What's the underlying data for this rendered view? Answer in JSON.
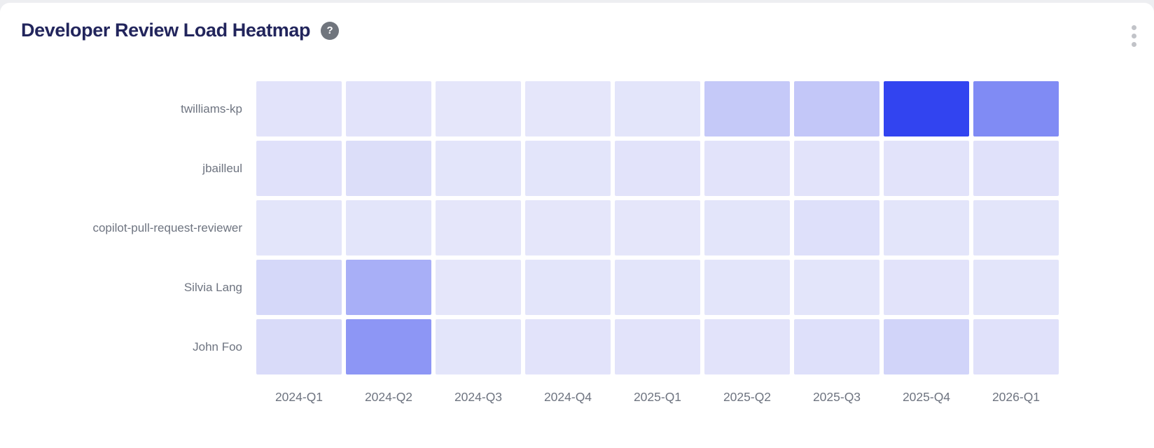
{
  "header": {
    "title": "Developer Review Load Heatmap",
    "help_label": "?"
  },
  "colors": {
    "page_bg": "#edeef1",
    "card_bg": "#ffffff",
    "title_text": "#22255c",
    "axis_text": "#6e7480",
    "help_badge_bg": "#70757d",
    "menu_dots": "#c1c3c8",
    "heat_min": "#e7e8fa",
    "heat_max": "#3244f0"
  },
  "chart_data": {
    "type": "heatmap",
    "title": "Developer Review Load Heatmap",
    "x_categories": [
      "2024-Q1",
      "2024-Q2",
      "2024-Q3",
      "2024-Q4",
      "2025-Q1",
      "2025-Q2",
      "2025-Q3",
      "2025-Q4",
      "2026-Q1"
    ],
    "y_categories": [
      "twilliams-kp",
      "jbailleul",
      "copilot-pull-request-reviewer",
      "Silvia Lang",
      "John Foo"
    ],
    "value_range": [
      0,
      100
    ],
    "legend": "none",
    "color_scale": {
      "min_color": "#e7e8fa",
      "max_color": "#3244f0"
    },
    "series": [
      {
        "name": "twilliams-kp",
        "values": [
          3,
          3,
          1,
          1,
          2,
          19,
          20,
          100,
          57
        ]
      },
      {
        "name": "jbailleul",
        "values": [
          4,
          6,
          2,
          2,
          3,
          3,
          3,
          3,
          4
        ]
      },
      {
        "name": "copilot-pull-request-reviewer",
        "values": [
          2,
          2,
          1,
          1,
          1,
          2,
          5,
          2,
          2
        ]
      },
      {
        "name": "Silvia Lang",
        "values": [
          10,
          35,
          1,
          2,
          2,
          2,
          2,
          3,
          2
        ]
      },
      {
        "name": "John Foo",
        "values": [
          8,
          50,
          2,
          3,
          3,
          3,
          5,
          12,
          4
        ]
      }
    ]
  }
}
